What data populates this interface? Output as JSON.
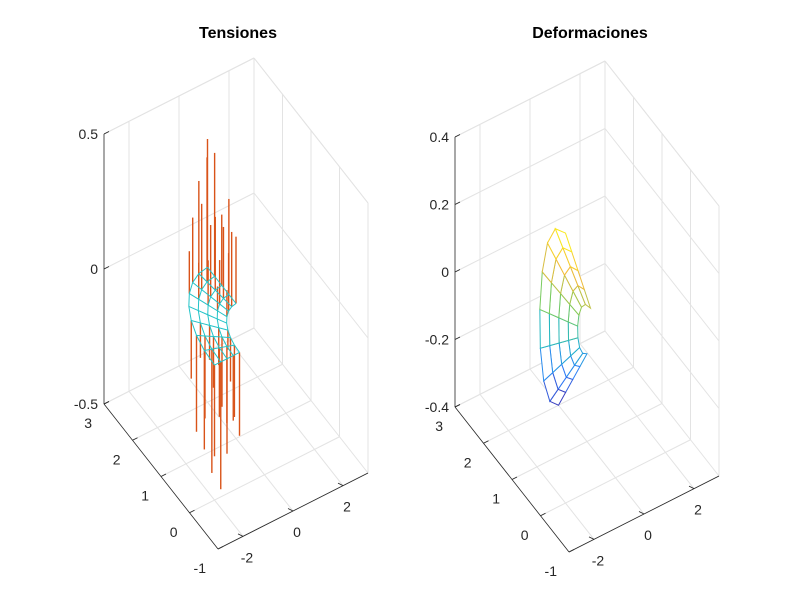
{
  "chart_data": [
    {
      "type": "surface3d",
      "title": "Tensiones",
      "xlabel": "",
      "ylabel": "",
      "zlabel": "",
      "xlim": [
        -3,
        3
      ],
      "ylim": [
        -1,
        3
      ],
      "zlim": [
        -0.5,
        0.5
      ],
      "x_ticks": [
        "-2",
        "0",
        "2"
      ],
      "y_ticks": [
        "-1",
        "0",
        "1",
        "2",
        "3"
      ],
      "z_ticks": [
        "-0.5",
        "0",
        "0.5"
      ],
      "grid": true,
      "mesh_color": "#22c3c8",
      "stem_color": "#d95319",
      "geometry": "quarter annular plate (inner radius 1, outer radius 2) with stress stems",
      "stress_range": [
        -0.45,
        0.45
      ]
    },
    {
      "type": "surface3d",
      "title": "Deformaciones",
      "xlabel": "",
      "ylabel": "",
      "zlabel": "",
      "xlim": [
        -3,
        3
      ],
      "ylim": [
        -1,
        3
      ],
      "zlim": [
        -0.4,
        0.4
      ],
      "x_ticks": [
        "-2",
        "0",
        "2"
      ],
      "y_ticks": [
        "-1",
        "0",
        "1",
        "2",
        "3"
      ],
      "z_ticks": [
        "-0.4",
        "-0.2",
        "0",
        "0.2",
        "0.4"
      ],
      "grid": true,
      "colormap": "parula",
      "colors": [
        "#3e26a8",
        "#2f7efa",
        "#20b6c8",
        "#7fcc58",
        "#f6ba3a",
        "#f9fb15"
      ],
      "geometry": "deformed quarter annular plate, twisting from -0.4 to +0.4",
      "deformation_range": [
        -0.4,
        0.4
      ]
    }
  ]
}
